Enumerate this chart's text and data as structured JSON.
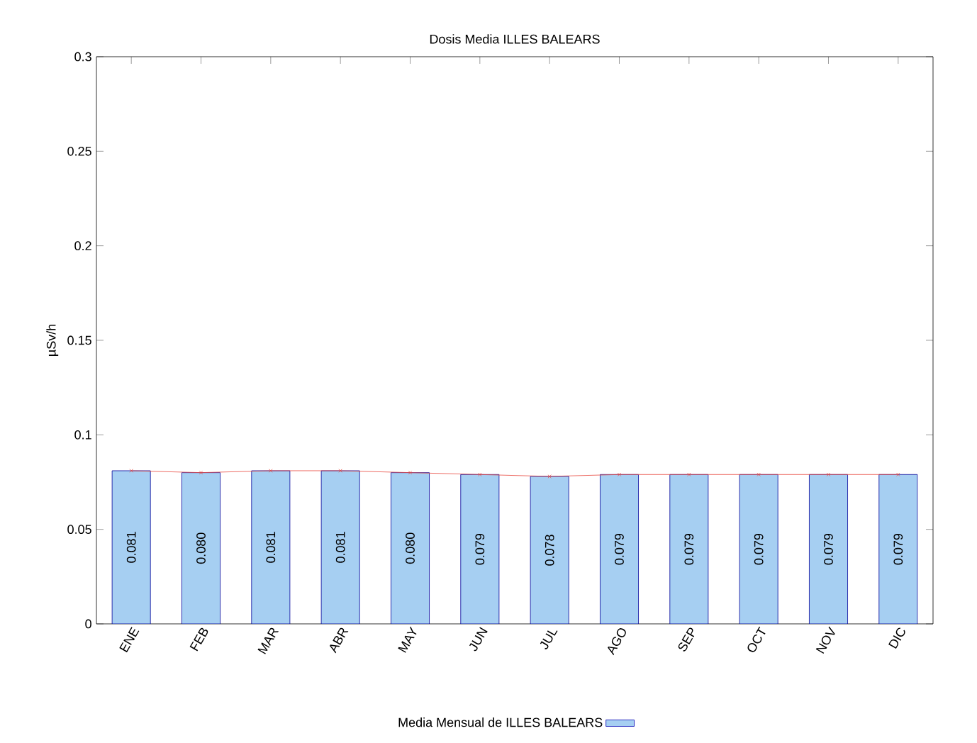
{
  "chart_data": {
    "type": "bar",
    "title": "Dosis Media ILLES BALEARS",
    "ylabel": "µSv/h",
    "categories": [
      "ENE",
      "FEB",
      "MAR",
      "ABR",
      "MAY",
      "JUN",
      "JUL",
      "AGO",
      "SEP",
      "OCT",
      "NOV",
      "DIC"
    ],
    "series": [
      {
        "name": "Media Mensual de ILLES BALEARS",
        "color": "#a6cff2",
        "values": [
          0.081,
          0.08,
          0.081,
          0.081,
          0.08,
          0.079,
          0.078,
          0.079,
          0.079,
          0.079,
          0.079,
          0.079
        ],
        "value_labels": [
          "0.081",
          "0.080",
          "0.081",
          "0.081",
          "0.080",
          "0.079",
          "0.078",
          "0.079",
          "0.079",
          "0.079",
          "0.079",
          "0.079"
        ]
      },
      {
        "type": "line",
        "color": "#e8463c",
        "marker": "cross",
        "values": [
          0.081,
          0.08,
          0.081,
          0.081,
          0.08,
          0.079,
          0.078,
          0.079,
          0.079,
          0.079,
          0.079,
          0.079
        ]
      }
    ],
    "ylim": [
      0,
      0.3
    ],
    "yticks": [
      0,
      0.05,
      0.1,
      0.15,
      0.2,
      0.25,
      0.3
    ],
    "grid": false,
    "legend": "bottom"
  }
}
